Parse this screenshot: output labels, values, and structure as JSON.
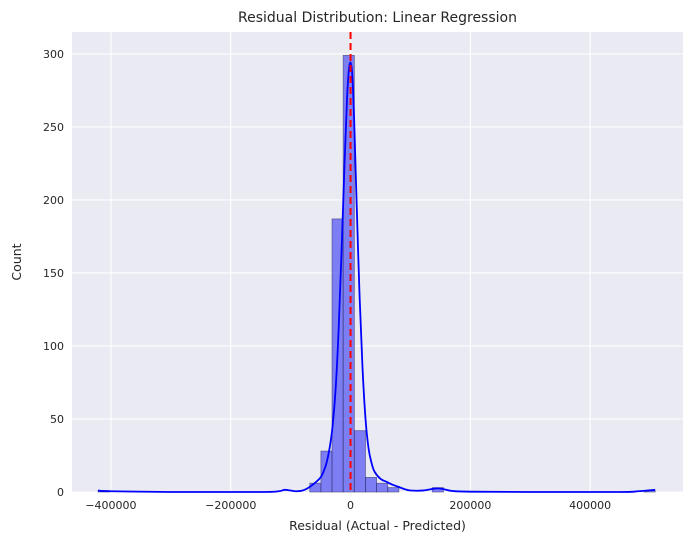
{
  "chart_data": {
    "type": "bar",
    "title": "Residual Distribution: Linear Regression",
    "xlabel": "Residual (Actual - Predicted)",
    "ylabel": "Count",
    "xlim": [
      -465000,
      555000
    ],
    "ylim": [
      0,
      315
    ],
    "x_ticks": [
      -400000,
      -200000,
      0,
      200000,
      400000
    ],
    "x_tick_labels": [
      "−400000",
      "−200000",
      "0",
      "200000",
      "400000"
    ],
    "y_ticks": [
      0,
      50,
      100,
      150,
      200,
      250,
      300
    ],
    "y_tick_labels": [
      "0",
      "50",
      "100",
      "150",
      "200",
      "250",
      "300"
    ],
    "grid": true,
    "background_color": "#eaeaf2",
    "bar_color": "#5050f5",
    "kde_color": "#0000ff",
    "reference_line": {
      "x": 0,
      "color": "#ff0000",
      "style": "dashed"
    },
    "bins": [
      {
        "x0": -421500,
        "x1": -402900,
        "count": 1
      },
      {
        "x0": -402900,
        "x1": -384300,
        "count": 0
      },
      {
        "x0": -384300,
        "x1": -365700,
        "count": 0
      },
      {
        "x0": -365700,
        "x1": -347100,
        "count": 0
      },
      {
        "x0": -347100,
        "x1": -328500,
        "count": 0
      },
      {
        "x0": -328500,
        "x1": -309900,
        "count": 0
      },
      {
        "x0": -309900,
        "x1": -291300,
        "count": 0
      },
      {
        "x0": -291300,
        "x1": -272700,
        "count": 0
      },
      {
        "x0": -272700,
        "x1": -254100,
        "count": 0
      },
      {
        "x0": -254100,
        "x1": -235500,
        "count": 0
      },
      {
        "x0": -235500,
        "x1": -216900,
        "count": 0
      },
      {
        "x0": -216900,
        "x1": -198300,
        "count": 0
      },
      {
        "x0": -198300,
        "x1": -179700,
        "count": 0
      },
      {
        "x0": -179700,
        "x1": -161100,
        "count": 0
      },
      {
        "x0": -161100,
        "x1": -142500,
        "count": 0
      },
      {
        "x0": -142500,
        "x1": -123900,
        "count": 0
      },
      {
        "x0": -123900,
        "x1": -105300,
        "count": 0
      },
      {
        "x0": -105300,
        "x1": -86700,
        "count": 0
      },
      {
        "x0": -86700,
        "x1": -68100,
        "count": 0
      },
      {
        "x0": -68100,
        "x1": -49500,
        "count": 6
      },
      {
        "x0": -49500,
        "x1": -30900,
        "count": 28
      },
      {
        "x0": -30900,
        "x1": -12300,
        "count": 187
      },
      {
        "x0": -12300,
        "x1": 6300,
        "count": 299
      },
      {
        "x0": 6300,
        "x1": 24900,
        "count": 42
      },
      {
        "x0": 24900,
        "x1": 43500,
        "count": 10
      },
      {
        "x0": 43500,
        "x1": 62100,
        "count": 6
      },
      {
        "x0": 62100,
        "x1": 80700,
        "count": 3
      },
      {
        "x0": 80700,
        "x1": 99300,
        "count": 0
      },
      {
        "x0": 99300,
        "x1": 117900,
        "count": 0
      },
      {
        "x0": 117900,
        "x1": 136500,
        "count": 0
      },
      {
        "x0": 136500,
        "x1": 155100,
        "count": 3
      },
      {
        "x0": 155100,
        "x1": 173700,
        "count": 0
      },
      {
        "x0": 173700,
        "x1": 192300,
        "count": 0
      },
      {
        "x0": 192300,
        "x1": 210900,
        "count": 0
      },
      {
        "x0": 210900,
        "x1": 229500,
        "count": 0
      },
      {
        "x0": 229500,
        "x1": 248100,
        "count": 0
      },
      {
        "x0": 248100,
        "x1": 266700,
        "count": 0
      },
      {
        "x0": 266700,
        "x1": 285300,
        "count": 0
      },
      {
        "x0": 285300,
        "x1": 303900,
        "count": 0
      },
      {
        "x0": 303900,
        "x1": 322500,
        "count": 0
      },
      {
        "x0": 322500,
        "x1": 341100,
        "count": 0
      },
      {
        "x0": 341100,
        "x1": 359700,
        "count": 0
      },
      {
        "x0": 359700,
        "x1": 378300,
        "count": 0
      },
      {
        "x0": 378300,
        "x1": 396900,
        "count": 0
      },
      {
        "x0": 396900,
        "x1": 415500,
        "count": 0
      },
      {
        "x0": 415500,
        "x1": 434100,
        "count": 0
      },
      {
        "x0": 434100,
        "x1": 452700,
        "count": 0
      },
      {
        "x0": 452700,
        "x1": 471300,
        "count": 0
      },
      {
        "x0": 471300,
        "x1": 489900,
        "count": 0
      },
      {
        "x0": 489900,
        "x1": 508500,
        "count": 1
      }
    ],
    "kde": [
      [
        -421500,
        1
      ],
      [
        -400000,
        0.5
      ],
      [
        -300000,
        0
      ],
      [
        -150000,
        0
      ],
      [
        -120000,
        0.5
      ],
      [
        -110000,
        1.5
      ],
      [
        -100000,
        1
      ],
      [
        -90000,
        0.5
      ],
      [
        -80000,
        1
      ],
      [
        -70000,
        3
      ],
      [
        -60000,
        6
      ],
      [
        -50000,
        10
      ],
      [
        -45000,
        14
      ],
      [
        -40000,
        20
      ],
      [
        -35000,
        30
      ],
      [
        -30000,
        45
      ],
      [
        -25000,
        70
      ],
      [
        -20000,
        110
      ],
      [
        -15000,
        165
      ],
      [
        -10000,
        225
      ],
      [
        -6000,
        268
      ],
      [
        -3000,
        288
      ],
      [
        0,
        294
      ],
      [
        3000,
        285
      ],
      [
        6000,
        255
      ],
      [
        10000,
        200
      ],
      [
        15000,
        135
      ],
      [
        20000,
        85
      ],
      [
        25000,
        50
      ],
      [
        30000,
        30
      ],
      [
        35000,
        20
      ],
      [
        40000,
        14
      ],
      [
        50000,
        9
      ],
      [
        60000,
        7
      ],
      [
        70000,
        5
      ],
      [
        80000,
        3.5
      ],
      [
        90000,
        2
      ],
      [
        100000,
        1
      ],
      [
        120000,
        1
      ],
      [
        135000,
        2
      ],
      [
        145000,
        2.5
      ],
      [
        155000,
        2
      ],
      [
        170000,
        0.7
      ],
      [
        200000,
        0.2
      ],
      [
        300000,
        0
      ],
      [
        450000,
        0
      ],
      [
        480000,
        0.5
      ],
      [
        508500,
        1.5
      ]
    ]
  }
}
